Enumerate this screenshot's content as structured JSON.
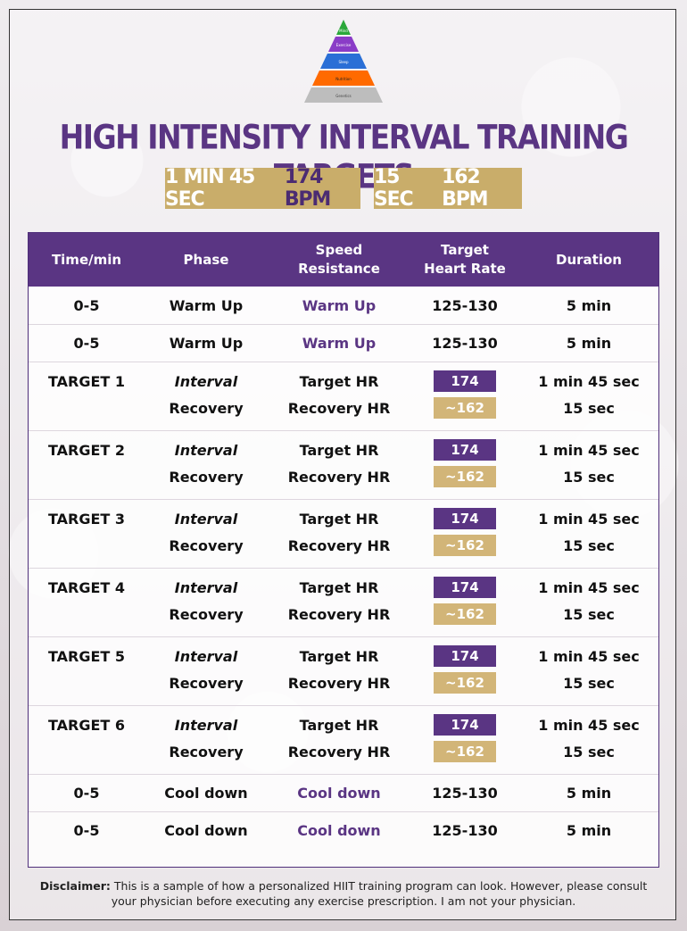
{
  "pyramid": {
    "levels": [
      "Mind",
      "Exercise",
      "Sleep",
      "Nutrition",
      "Genetics"
    ],
    "colors": [
      "#2aa83a",
      "#8a3cc7",
      "#2a6fd6",
      "#ff6a00",
      "#bdbdbd"
    ]
  },
  "title": "HIGH INTENSITY INTERVAL TRAINING TARGETS",
  "badges": {
    "first_time": "1 MIN 45 SEC",
    "first_bpm": "174 BPM",
    "second_time": "15 SEC",
    "second_bpm": "162 BPM"
  },
  "table": {
    "headers": {
      "time": "Time/min",
      "phase": "Phase",
      "speed_line1": "Speed",
      "speed_line2": "Resistance",
      "target_line1": "Target",
      "target_line2": "Heart Rate",
      "duration": "Duration"
    },
    "warmup_rows": [
      {
        "time": "0-5",
        "phase": "Warm Up",
        "speed": "Warm Up",
        "hr": "125-130",
        "duration": "5 min"
      },
      {
        "time": "0-5",
        "phase": "Warm Up",
        "speed": "Warm Up",
        "hr": "125-130",
        "duration": "5 min"
      }
    ],
    "targets": [
      {
        "label": "TARGET 1",
        "interval": "Interval",
        "recovery": "Recovery",
        "target_hr": "Target HR",
        "recovery_hr": "Recovery HR",
        "hr_high": "174",
        "hr_low": "~162",
        "dur_high": "1 min 45 sec",
        "dur_low": "15 sec"
      },
      {
        "label": "TARGET 2",
        "interval": "Interval",
        "recovery": "Recovery",
        "target_hr": "Target HR",
        "recovery_hr": "Recovery HR",
        "hr_high": "174",
        "hr_low": "~162",
        "dur_high": "1 min 45 sec",
        "dur_low": "15 sec"
      },
      {
        "label": "TARGET 3",
        "interval": "Interval",
        "recovery": "Recovery",
        "target_hr": "Target HR",
        "recovery_hr": "Recovery HR",
        "hr_high": "174",
        "hr_low": "~162",
        "dur_high": "1 min 45 sec",
        "dur_low": "15 sec"
      },
      {
        "label": "TARGET 4",
        "interval": "Interval",
        "recovery": "Recovery",
        "target_hr": "Target HR",
        "recovery_hr": "Recovery HR",
        "hr_high": "174",
        "hr_low": "~162",
        "dur_high": "1 min 45 sec",
        "dur_low": "15 sec"
      },
      {
        "label": "TARGET 5",
        "interval": "Interval",
        "recovery": "Recovery",
        "target_hr": "Target HR",
        "recovery_hr": "Recovery HR",
        "hr_high": "174",
        "hr_low": "~162",
        "dur_high": "1 min 45 sec",
        "dur_low": "15 sec"
      },
      {
        "label": "TARGET 6",
        "interval": "Interval",
        "recovery": "Recovery",
        "target_hr": "Target HR",
        "recovery_hr": "Recovery HR",
        "hr_high": "174",
        "hr_low": "~162",
        "dur_high": "1 min 45 sec",
        "dur_low": "15 sec"
      }
    ],
    "cooldown_rows": [
      {
        "time": "0-5",
        "phase": "Cool down",
        "speed": "Cool down",
        "hr": "125-130",
        "duration": "5 min"
      },
      {
        "time": "0-5",
        "phase": "Cool down",
        "speed": "Cool down",
        "hr": "125-130",
        "duration": "5 min"
      }
    ]
  },
  "disclaimer": {
    "label": "Disclaimer:",
    "text": "This is a sample of how a personalized HIIT training program can look. However, please consult your physician before executing any exercise prescription. I am not your physician."
  },
  "colors": {
    "purple": "#5a3583",
    "gold": "#c9ad6a"
  }
}
